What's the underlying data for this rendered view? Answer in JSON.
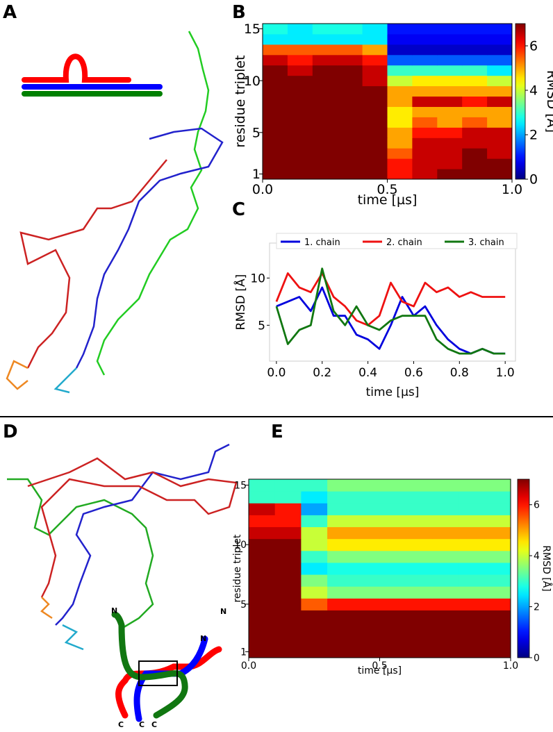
{
  "panel_labels": [
    "A",
    "B",
    "C",
    "D",
    "E"
  ],
  "diagram_d": {
    "labels": [
      "N",
      "N",
      "N",
      "C",
      "C",
      "C"
    ]
  },
  "chart_data": [
    {
      "type": "heatmap",
      "xlabel": "time [µs]",
      "ylabel": "residue triplet",
      "colorbar_label": "RMSD [Å]",
      "colormap": "jet",
      "xlim": [
        0,
        1
      ],
      "xticks": [
        {
          "value": 0,
          "label": "0.0"
        },
        {
          "value": 0.5,
          "label": "0.5"
        },
        {
          "value": 1,
          "label": "1.0"
        }
      ],
      "ylim": [
        0.5,
        15.5
      ],
      "yticks": [
        1,
        5,
        10,
        15
      ],
      "clim": [
        0,
        7
      ],
      "cticks": [
        0,
        2,
        4,
        6
      ],
      "values": [
        [
          7,
          7,
          7,
          7,
          7,
          6,
          6.5,
          7,
          7,
          7
        ],
        [
          7,
          7,
          7,
          7,
          7,
          6,
          6.5,
          6.5,
          7,
          7
        ],
        [
          7,
          7,
          7,
          7,
          7,
          5.5,
          6.5,
          6.5,
          7,
          6.5
        ],
        [
          7,
          7,
          7,
          7,
          7,
          5,
          6.5,
          6.5,
          6.5,
          6.5
        ],
        [
          7,
          7,
          7,
          7,
          7,
          5,
          6,
          6,
          6.5,
          6.5
        ],
        [
          7,
          7,
          7,
          7,
          7,
          4.5,
          5.5,
          5,
          5.5,
          5
        ],
        [
          7,
          7,
          7,
          7,
          7,
          4.5,
          5,
          5,
          5,
          5
        ],
        [
          7,
          7,
          7,
          7,
          7,
          5,
          6.5,
          6.5,
          6,
          6.5
        ],
        [
          7,
          7,
          7,
          7,
          7,
          5,
          5,
          5,
          5,
          5
        ],
        [
          7,
          7,
          7,
          7,
          6.5,
          4,
          4.5,
          4.5,
          4.5,
          4
        ],
        [
          7,
          6.5,
          7,
          7,
          6.5,
          3,
          3,
          3,
          3,
          2.5
        ],
        [
          6.5,
          6,
          6.5,
          6.5,
          6,
          1.5,
          1.5,
          1.5,
          1.5,
          1.5
        ],
        [
          5.5,
          5.5,
          5.5,
          5.5,
          5,
          0.5,
          0.5,
          0.5,
          0.5,
          0.5
        ],
        [
          2.5,
          2.5,
          2.5,
          2.5,
          2.5,
          0.8,
          0.8,
          0.8,
          0.8,
          0.8
        ],
        [
          2.8,
          2.5,
          2.8,
          2.8,
          2.5,
          1,
          1,
          1,
          1,
          1
        ]
      ]
    },
    {
      "type": "line",
      "xlabel": "time [µs]",
      "ylabel": "RMSD [Å]",
      "xlim": [
        -0.03,
        1.045
      ],
      "xticks": [
        {
          "value": 0,
          "label": "0.0"
        },
        {
          "value": 0.2,
          "label": "0.2"
        },
        {
          "value": 0.4,
          "label": "0.4"
        },
        {
          "value": 0.6,
          "label": "0.6"
        },
        {
          "value": 0.8,
          "label": "0.8"
        },
        {
          "value": 1,
          "label": "1.0"
        }
      ],
      "ylim": [
        1.2,
        13.7
      ],
      "yticks": [
        5,
        10
      ],
      "x": [
        0,
        0.05,
        0.1,
        0.15,
        0.2,
        0.25,
        0.3,
        0.35,
        0.4,
        0.45,
        0.5,
        0.55,
        0.6,
        0.65,
        0.7,
        0.75,
        0.8,
        0.85,
        0.9,
        0.95,
        1
      ],
      "series": [
        {
          "name": "1. chain",
          "color": "#0000dd",
          "values": [
            7,
            7.5,
            8,
            6.5,
            9,
            6,
            6,
            4,
            3.5,
            2.5,
            5,
            8,
            6,
            7,
            5,
            3.5,
            2.5,
            2,
            2.5,
            2,
            2
          ]
        },
        {
          "name": "2. chain",
          "color": "#ee1111",
          "values": [
            7.5,
            10.5,
            9,
            8.5,
            10.5,
            8,
            7,
            5.5,
            5,
            6,
            9.5,
            7.5,
            7,
            9.5,
            8.5,
            9,
            8,
            8.5,
            8,
            8,
            8
          ]
        },
        {
          "name": "3. chain",
          "color": "#117711",
          "values": [
            7,
            3,
            4.5,
            5,
            11,
            6.5,
            5,
            7,
            5,
            4.5,
            5.5,
            6,
            6,
            6,
            3.5,
            2.5,
            2,
            2,
            2.5,
            2,
            2
          ]
        }
      ]
    },
    {
      "type": "heatmap",
      "xlabel": "time [µs]",
      "ylabel": "residue triplet",
      "colorbar_label": "RMSD [Å]",
      "colormap": "jet",
      "xlim": [
        0,
        1
      ],
      "xticks": [
        {
          "value": 0,
          "label": "0.0"
        },
        {
          "value": 0.5,
          "label": "0.5"
        },
        {
          "value": 1,
          "label": "1.0"
        }
      ],
      "ylim": [
        0.5,
        15.5
      ],
      "yticks": [
        1,
        5,
        10,
        15
      ],
      "clim": [
        0,
        7
      ],
      "cticks": [
        0,
        2,
        4,
        6
      ],
      "values": [
        [
          7,
          7,
          7,
          7,
          7,
          7,
          7,
          7,
          7,
          7
        ],
        [
          7,
          7,
          7,
          7,
          7,
          7,
          7,
          7,
          7,
          7
        ],
        [
          7,
          7,
          7,
          7,
          7,
          7,
          7,
          7,
          7,
          7
        ],
        [
          7,
          7,
          7,
          7,
          7,
          7,
          7,
          7,
          7,
          7
        ],
        [
          7,
          7,
          5.5,
          6,
          6,
          6,
          6,
          6,
          6,
          6
        ],
        [
          7,
          7,
          4,
          3.5,
          3.5,
          3.5,
          3.5,
          3.5,
          3.5,
          3.5
        ],
        [
          7,
          7,
          3.5,
          3,
          3,
          3,
          3,
          3,
          3,
          3
        ],
        [
          7,
          7,
          2.5,
          2.8,
          2.8,
          2.8,
          2.8,
          2.8,
          2.8,
          2.8
        ],
        [
          7,
          7,
          3,
          3.5,
          3.5,
          3.5,
          3.5,
          3.5,
          3.5,
          3.5
        ],
        [
          7,
          7,
          4,
          4.5,
          4.5,
          4.5,
          4.5,
          4.5,
          4.5,
          4.5
        ],
        [
          6.5,
          6.5,
          4,
          5,
          5,
          5,
          5,
          5,
          5,
          5
        ],
        [
          6,
          6,
          3,
          4,
          4,
          4,
          4,
          4,
          4,
          4
        ],
        [
          6.5,
          6,
          2,
          3,
          3,
          3,
          3,
          3,
          3,
          3
        ],
        [
          3,
          3,
          2.5,
          3,
          3,
          3,
          3,
          3,
          3,
          3
        ],
        [
          3,
          3,
          3,
          3.5,
          3.5,
          3.5,
          3.5,
          3.5,
          3.5,
          3.5
        ]
      ]
    }
  ]
}
